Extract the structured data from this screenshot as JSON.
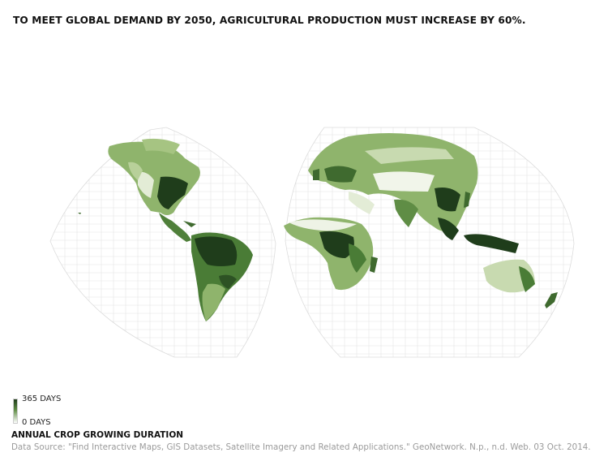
{
  "title": "TO MEET GLOBAL DEMAND BY 2050, AGRICULTURAL PRODUCTION MUST INCREASE BY 60%.",
  "legend": {
    "max_label": "365 DAYS",
    "min_label": "0 DAYS",
    "title": "ANNUAL CROP GROWING DURATION",
    "color_high": "#1f3d1b",
    "color_mid": "#5f8d45",
    "color_low": "#ffffff"
  },
  "source": "Data Source: \"Find Interactive Maps, GIS Datasets, Satellite Imagery and Related Applications.\" GeoNetwork. N.p., n.d. Web. 03 Oct. 2014."
}
